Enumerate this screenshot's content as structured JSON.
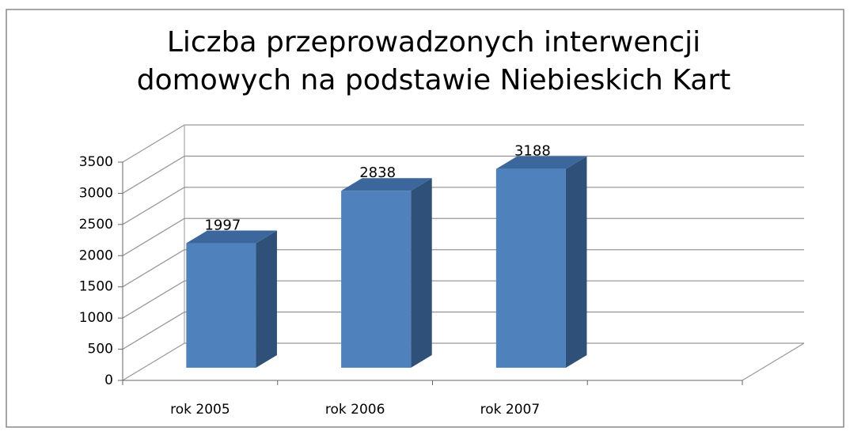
{
  "chart_data": {
    "type": "bar3d",
    "title": [
      "Liczba przeprowadzonych  interwencji",
      "domowych na podstawie Niebieskich Kart"
    ],
    "categories": [
      "rok 2005",
      "rok 2006",
      "rok 2007",
      null
    ],
    "values": [
      1997,
      2838,
      3188,
      null
    ],
    "color": "#4f81bd",
    "ylim": [
      0,
      3500
    ],
    "yticks": [
      0,
      500,
      1000,
      1500,
      2000,
      2500,
      3000,
      3500
    ],
    "grid": true
  }
}
